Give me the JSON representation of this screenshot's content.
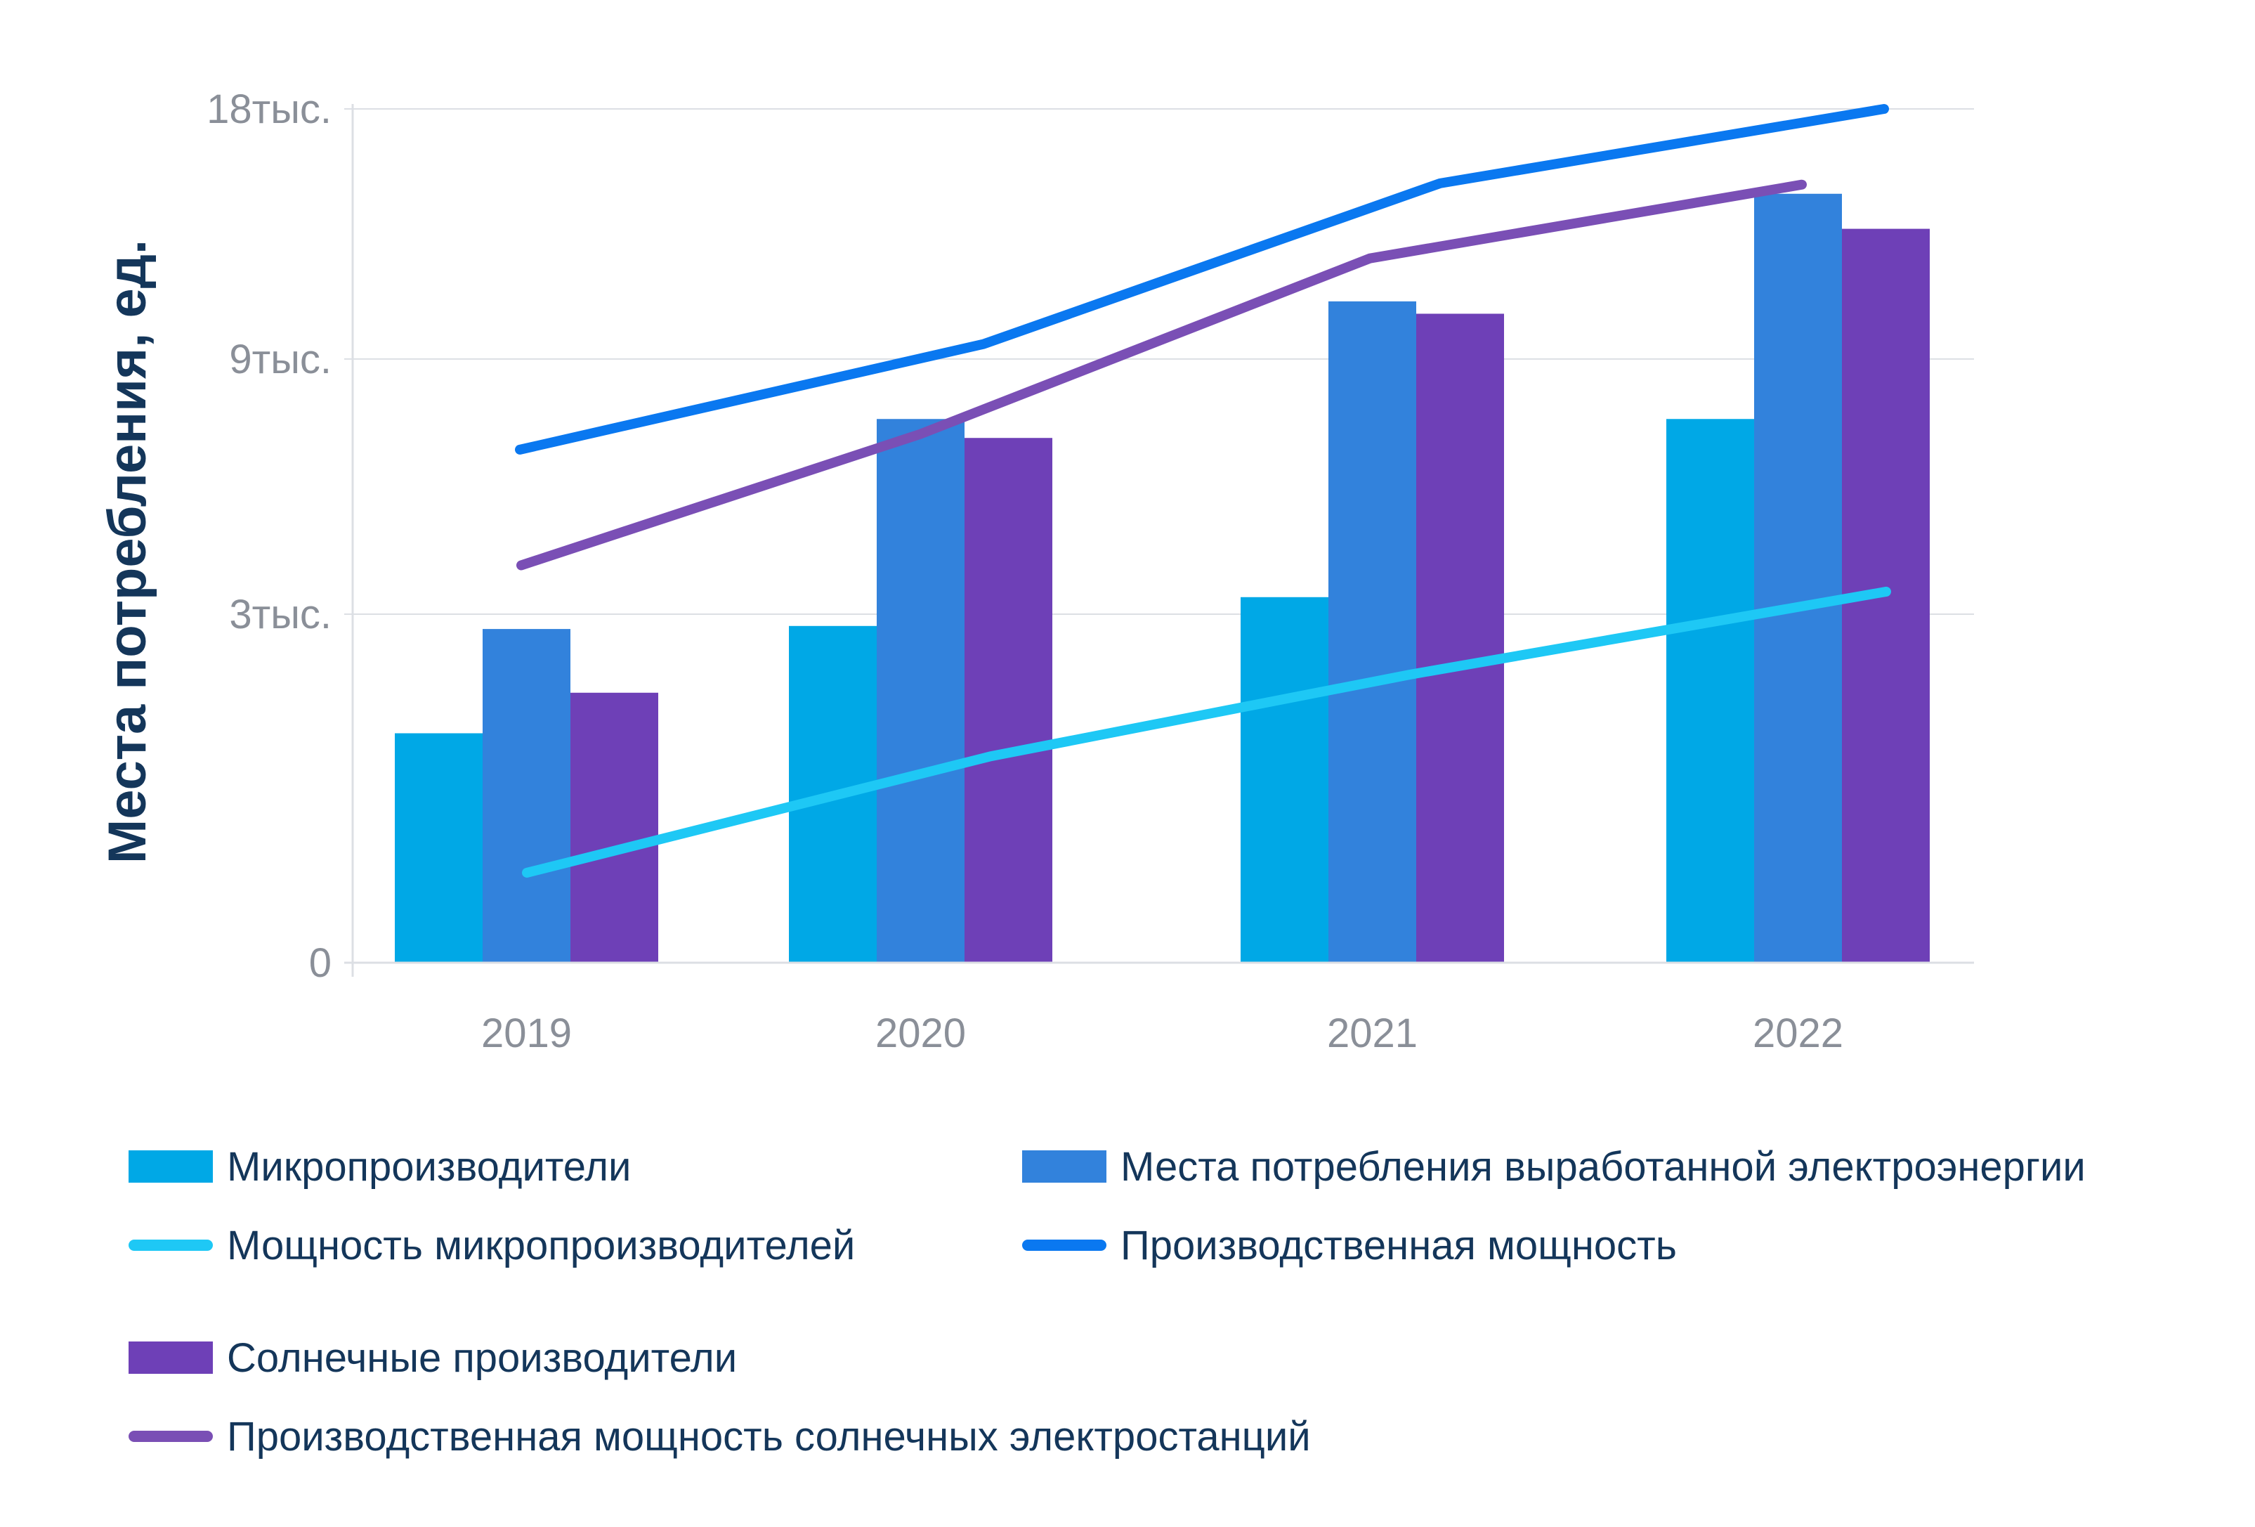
{
  "chart_data": {
    "type": "bar",
    "title": "",
    "xlabel": "",
    "ylabel": "Места потребления, ед.",
    "categories": [
      "2019",
      "2020",
      "2021",
      "2022"
    ],
    "y_ticks": [
      {
        "value": 0,
        "label": "0"
      },
      {
        "value": 3000,
        "label": "3тыс."
      },
      {
        "value": 9000,
        "label": "9тыс."
      },
      {
        "value": 18000,
        "label": "18тыс."
      }
    ],
    "y_scale": "sqrt",
    "ylim": [
      0,
      18000
    ],
    "grid": true,
    "legend_position": "bottom",
    "series": [
      {
        "name": "Микропроизводители",
        "kind": "bar",
        "color": "#00a8e6",
        "values": [
          1300,
          2800,
          3300,
          7300
        ]
      },
      {
        "name": "Места потребления выработанной электроэнергии",
        "kind": "bar",
        "color": "#3282dc",
        "values": [
          2750,
          7300,
          10800,
          14600
        ]
      },
      {
        "name": "Солнечные производители",
        "kind": "bar",
        "color": "#6e40b7",
        "values": [
          1800,
          6800,
          10400,
          13300
        ]
      },
      {
        "name": "Мощность микропроизводителей",
        "kind": "line",
        "color": "#1ec8f5",
        "values": [
          200,
          1050,
          2050,
          3400
        ]
      },
      {
        "name": "Производственная мощность",
        "kind": "line",
        "color": "#0a78f0",
        "values": [
          6500,
          9450,
          15000,
          18000
        ]
      },
      {
        "name": "Производственная мощность солнечных электростанций",
        "kind": "line",
        "color": "#7a4fb5",
        "values": [
          3900,
          6900,
          12250,
          14950
        ]
      }
    ]
  }
}
